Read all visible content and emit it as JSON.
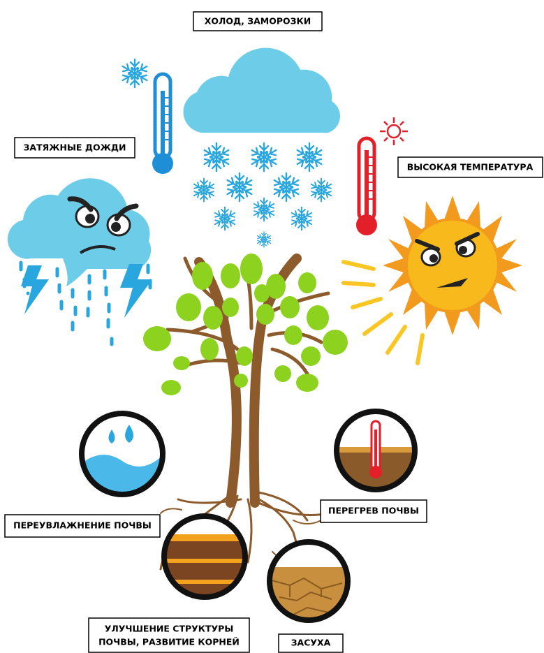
{
  "labels": {
    "cold": "ХОЛОД, ЗАМОРОЗКИ",
    "rain": "ЗАТЯЖНЫЕ ДОЖДИ",
    "heat": "ВЫСОКАЯ ТЕМПЕРАТУРА",
    "waterlogging": "ПЕРЕУВЛАЖНЕНИЕ ПОЧВЫ",
    "soil_overheating": "ПЕРЕГРЕВ ПОЧВЫ",
    "soil_structure": [
      "УЛУЧШЕНИЕ СТРУКТУРЫ",
      "ПОЧВЫ, РАЗВИТИЕ КОРНЕЙ"
    ],
    "drought": "ЗАСУХА"
  }
}
